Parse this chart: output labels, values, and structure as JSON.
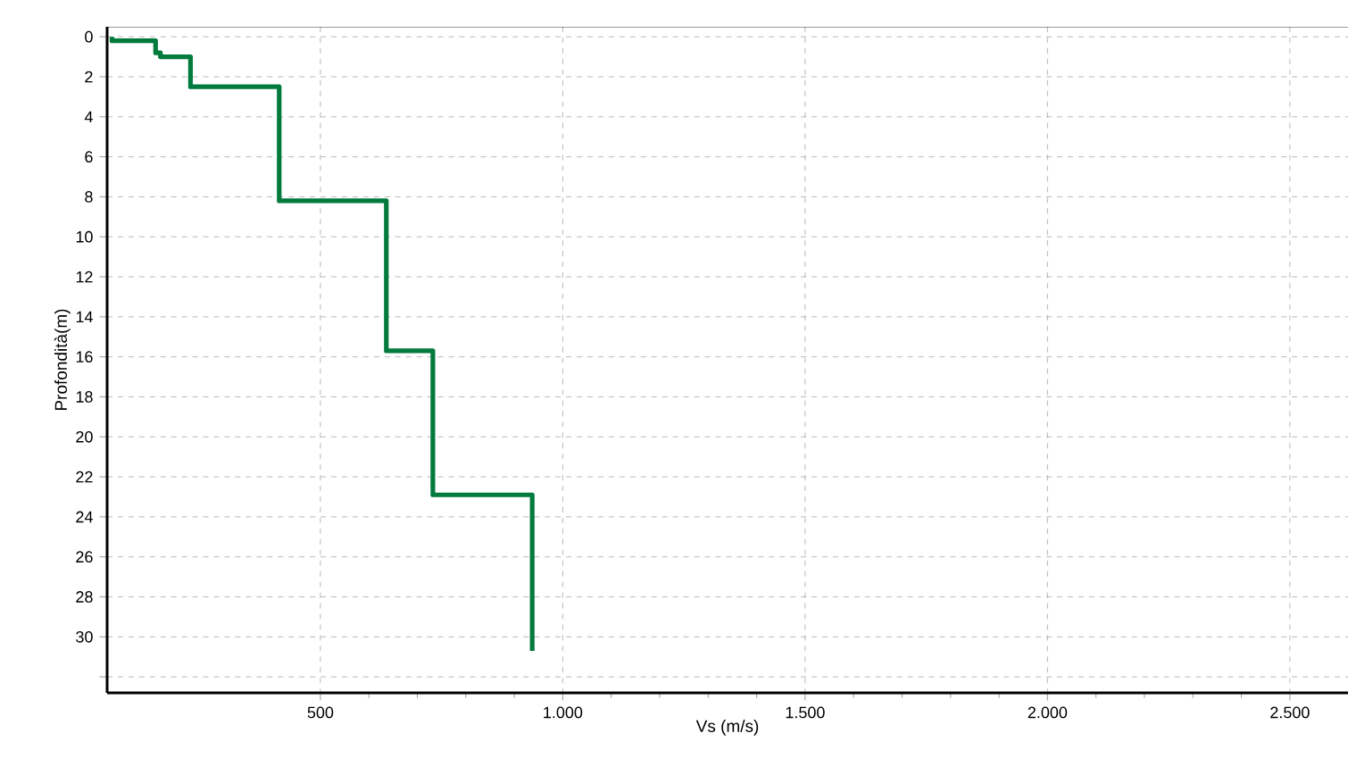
{
  "chart_data": {
    "type": "line",
    "xlabel": "Vs (m/s)",
    "ylabel": "Profondità(m)",
    "series": [
      {
        "color": "#007a3d",
        "x": [
          70,
          70,
          160,
          160,
          170,
          170,
          232,
          232,
          415,
          415,
          636,
          636,
          732,
          732,
          937,
          937
        ],
        "values": [
          0,
          0.2,
          0.2,
          0.8,
          0.8,
          1.0,
          1.0,
          2.5,
          2.5,
          8.2,
          8.2,
          15.7,
          15.7,
          22.9,
          22.9,
          30.7
        ]
      }
    ],
    "xlim": [
      60,
      2620
    ],
    "ylim": [
      32.8,
      -0.5
    ],
    "xticks": [
      500,
      {
        "value": 1000,
        "label": "1.000"
      },
      {
        "value": 1500,
        "label": "1.500"
      },
      {
        "value": 2000,
        "label": "2.000"
      },
      {
        "value": 2500,
        "label": "2.500"
      }
    ],
    "yticks": [
      0,
      2,
      4,
      6,
      8,
      10,
      12,
      14,
      16,
      18,
      20,
      22,
      24,
      26,
      28,
      30,
      {
        "value": 32,
        "label": null
      }
    ],
    "grid": true
  }
}
